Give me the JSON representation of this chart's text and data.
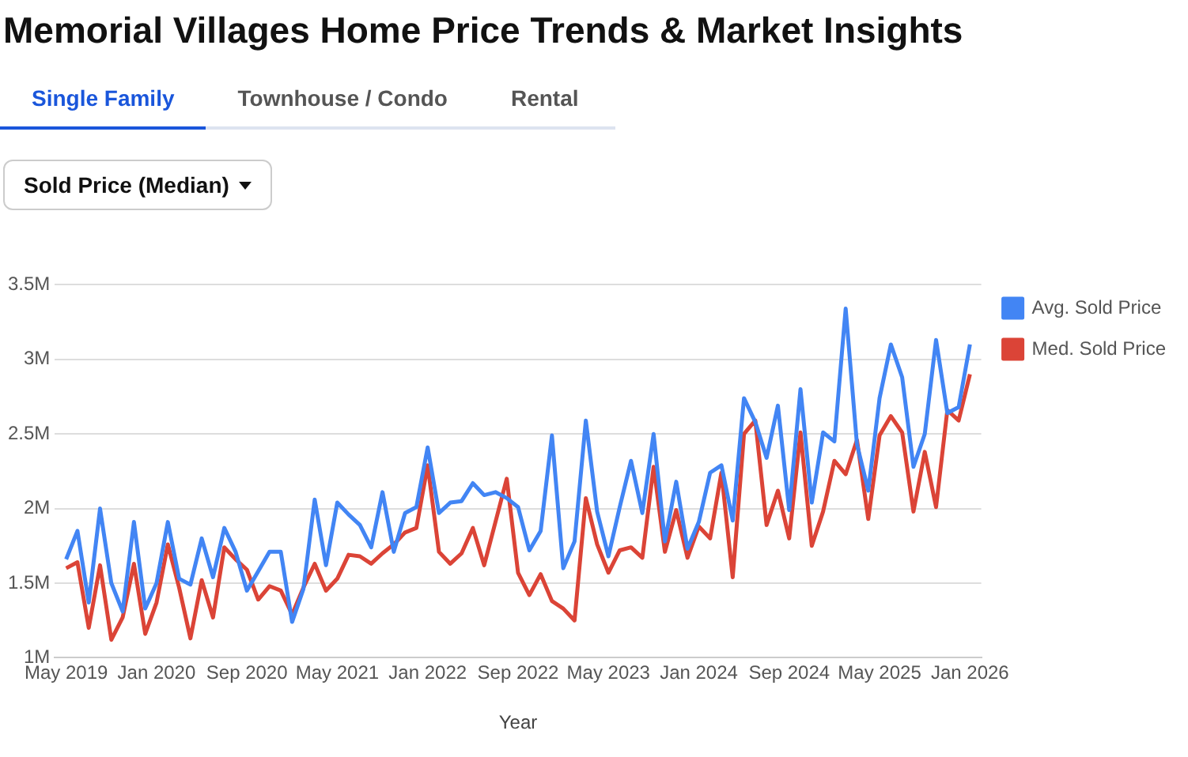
{
  "chart_data": {
    "type": "line",
    "title": "Memorial Villages Home Price Trends & Market Insights",
    "annotations": [
      "Single Family",
      "Townhouse / Condo",
      "Rental",
      "Sold Price (Median)"
    ],
    "xlabel": "Year",
    "x": [
      "2019-05",
      "2019-06",
      "2019-07",
      "2019-08",
      "2019-09",
      "2019-10",
      "2019-11",
      "2019-12",
      "2020-01",
      "2020-02",
      "2020-03",
      "2020-04",
      "2020-05",
      "2020-06",
      "2020-07",
      "2020-08",
      "2020-09",
      "2020-10",
      "2020-11",
      "2020-12",
      "2021-01",
      "2021-02",
      "2021-03",
      "2021-04",
      "2021-05",
      "2021-06",
      "2021-07",
      "2021-08",
      "2021-09",
      "2021-10",
      "2021-11",
      "2021-12",
      "2022-01",
      "2022-02",
      "2022-03",
      "2022-04",
      "2022-05",
      "2022-06",
      "2022-07",
      "2022-08",
      "2022-09",
      "2022-10",
      "2022-11",
      "2022-12",
      "2023-01",
      "2023-02",
      "2023-03",
      "2023-04",
      "2023-05",
      "2023-06",
      "2023-07",
      "2023-08",
      "2023-09",
      "2023-10",
      "2023-11",
      "2023-12",
      "2024-01",
      "2024-02",
      "2024-03",
      "2024-04",
      "2024-05",
      "2024-06",
      "2024-07",
      "2024-08",
      "2024-09",
      "2024-10",
      "2024-11",
      "2024-12",
      "2025-01",
      "2025-02",
      "2025-03",
      "2025-04",
      "2025-05",
      "2025-06",
      "2025-07",
      "2025-08",
      "2025-09",
      "2025-10",
      "2025-11",
      "2025-12",
      "2026-01"
    ],
    "series": [
      {
        "name": "Avg. Sold Price",
        "color": "#4285f4",
        "values": [
          1.66,
          1.85,
          1.37,
          2.0,
          1.5,
          1.31,
          1.91,
          1.33,
          1.5,
          1.91,
          1.53,
          1.49,
          1.8,
          1.54,
          1.87,
          1.71,
          1.45,
          1.58,
          1.71,
          1.71,
          1.24,
          1.46,
          2.06,
          1.62,
          2.04,
          1.96,
          1.89,
          1.74,
          2.11,
          1.71,
          1.97,
          2.01,
          2.41,
          1.97,
          2.04,
          2.05,
          2.17,
          2.09,
          2.11,
          2.07,
          2.01,
          1.72,
          1.85,
          2.49,
          1.6,
          1.78,
          2.59,
          1.98,
          1.68,
          2.01,
          2.32,
          1.97,
          2.5,
          1.78,
          2.18,
          1.73,
          1.91,
          2.24,
          2.29,
          1.92,
          2.74,
          2.58,
          2.34,
          2.69,
          1.99,
          2.8,
          2.04,
          2.51,
          2.45,
          3.34,
          2.43,
          2.12,
          2.74,
          3.1,
          2.88,
          2.28,
          2.5,
          3.13,
          2.64,
          2.68,
          3.1
        ]
      },
      {
        "name": "Med. Sold Price",
        "color": "#db4437",
        "values": [
          1.6,
          1.64,
          1.2,
          1.62,
          1.12,
          1.27,
          1.63,
          1.16,
          1.37,
          1.76,
          1.47,
          1.13,
          1.52,
          1.27,
          1.74,
          1.66,
          1.59,
          1.39,
          1.48,
          1.45,
          1.29,
          1.47,
          1.63,
          1.45,
          1.53,
          1.69,
          1.68,
          1.63,
          1.7,
          1.76,
          1.84,
          1.87,
          2.29,
          1.71,
          1.63,
          1.7,
          1.87,
          1.62,
          1.91,
          2.2,
          1.57,
          1.42,
          1.56,
          1.38,
          1.33,
          1.25,
          2.07,
          1.76,
          1.57,
          1.72,
          1.74,
          1.67,
          2.28,
          1.71,
          1.99,
          1.67,
          1.88,
          1.8,
          2.24,
          1.54,
          2.5,
          2.59,
          1.89,
          2.12,
          1.8,
          2.51,
          1.75,
          1.98,
          2.32,
          2.23,
          2.46,
          1.93,
          2.49,
          2.62,
          2.51,
          1.98,
          2.38,
          2.01,
          2.66,
          2.59,
          2.9
        ]
      }
    ],
    "xlim": [
      "2019-04",
      "2026-02"
    ],
    "xticks": [
      {
        "value": "2019-05",
        "label": "May 2019"
      },
      {
        "value": "2020-01",
        "label": "Jan 2020"
      },
      {
        "value": "2020-09",
        "label": "Sep 2020"
      },
      {
        "value": "2021-05",
        "label": "May 2021"
      },
      {
        "value": "2022-01",
        "label": "Jan 2022"
      },
      {
        "value": "2022-09",
        "label": "Sep 2022"
      },
      {
        "value": "2023-05",
        "label": "May 2023"
      },
      {
        "value": "2024-01",
        "label": "Jan 2024"
      },
      {
        "value": "2024-09",
        "label": "Sep 2024"
      },
      {
        "value": "2025-05",
        "label": "May 2025"
      },
      {
        "value": "2026-01",
        "label": "Jan 2026"
      }
    ],
    "ylim": [
      1,
      3.5
    ],
    "yticks": [
      {
        "value": 1,
        "label": "1M"
      },
      {
        "value": 1.5,
        "label": "1.5M"
      },
      {
        "value": 2,
        "label": "2M"
      },
      {
        "value": 2.5,
        "label": "2.5M"
      },
      {
        "value": 3,
        "label": "3M"
      },
      {
        "value": 3.5,
        "label": "3.5M"
      }
    ],
    "grid": "y",
    "legend": "right",
    "marker": "none",
    "line_style": "solid"
  }
}
